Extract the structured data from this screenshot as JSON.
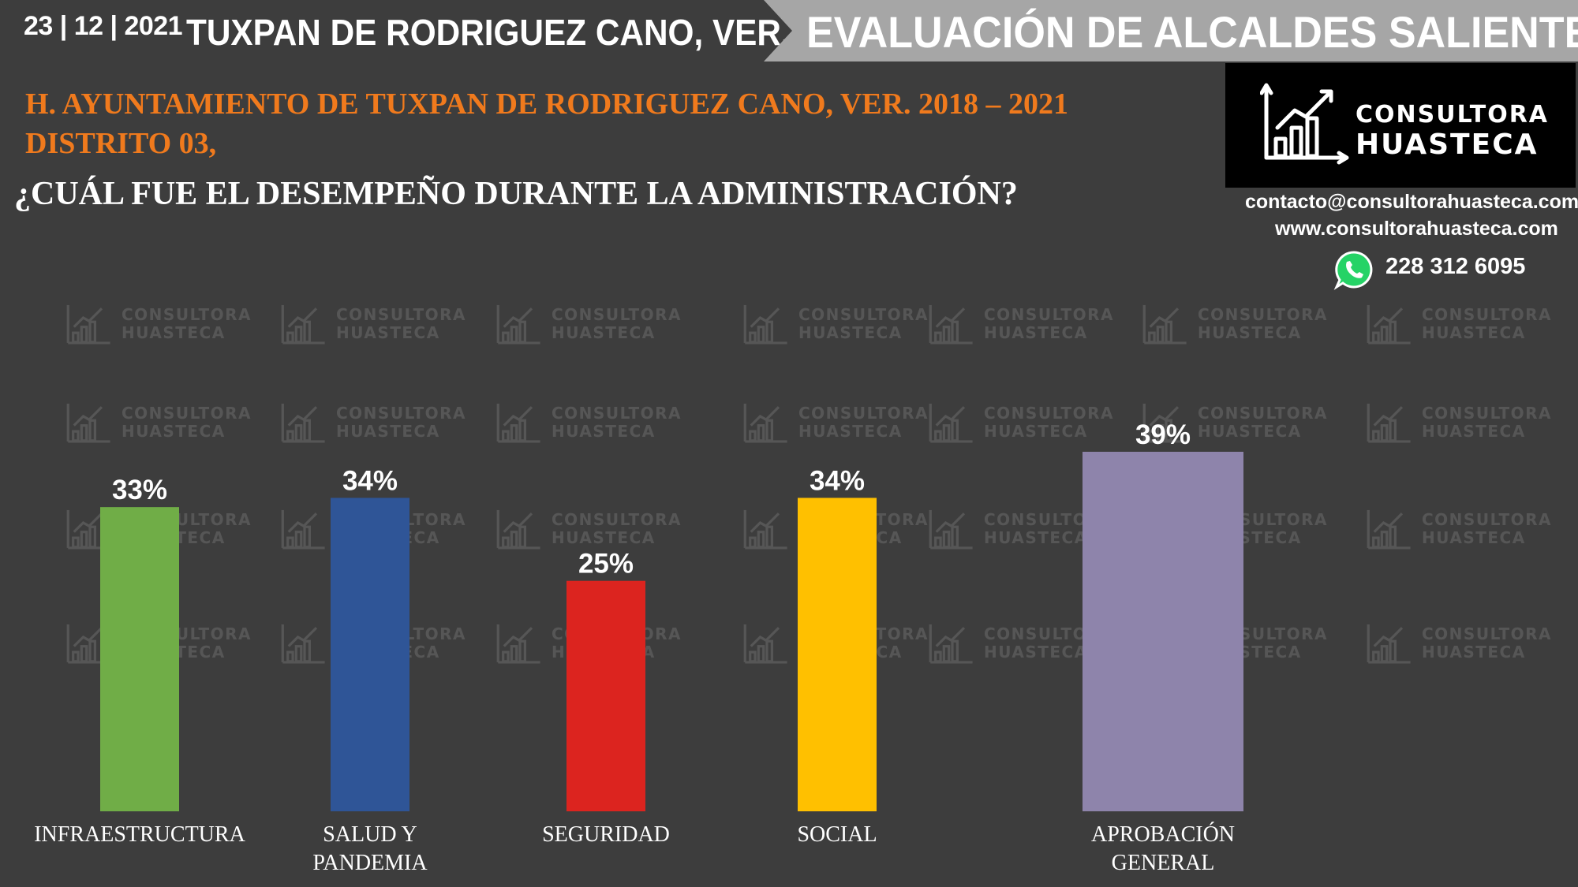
{
  "header": {
    "date": "23 | 12 | 2021",
    "city": "TUXPAN DE RODRIGUEZ CANO, VER.",
    "banner": "EVALUACIÓN DE ALCALDES SALIENTES"
  },
  "org": {
    "line1": "H. AYUNTAMIENTO DE TUXPAN DE RODRIGUEZ CANO, VER. 2018 – 2021",
    "line2": "DISTRITO 03,"
  },
  "question": "¿CUÁL FUE EL DESEMPEÑO DURANTE LA ADMINISTRACIÓN?",
  "logo": {
    "line1": "CONSULTORA",
    "line2": "HUASTECA",
    "icon": "bar-chart-growth-icon"
  },
  "contact": {
    "email": "contacto@consultorahuasteca.com",
    "web": "www.consultorahuasteca.com",
    "phone": "228 312 6095",
    "phone_icon": "whatsapp-icon"
  },
  "watermark": {
    "line1": "CONSULTORA",
    "line2": "HUASTECA"
  },
  "colors": {
    "background": "#3d3d3d",
    "accent": "#f07a1d",
    "banner": "#a6a6a6"
  },
  "chart_data": {
    "type": "bar",
    "categories": [
      [
        "INFRAESTRUCTURA"
      ],
      [
        "SALUD Y",
        "PANDEMIA"
      ],
      [
        "SEGURIDAD"
      ],
      [
        "SOCIAL"
      ],
      [
        "APROBACIÓN",
        "GENERAL"
      ]
    ],
    "values": [
      33,
      34,
      25,
      34,
      39
    ],
    "value_labels": [
      "33%",
      "34%",
      "25%",
      "34%",
      "39%"
    ],
    "colors": [
      "#70ad47",
      "#2f5597",
      "#dc241f",
      "#ffc000",
      "#8e84ab"
    ],
    "unit": "%",
    "ylim": [
      0,
      39
    ],
    "grid": false,
    "legend": "none"
  }
}
